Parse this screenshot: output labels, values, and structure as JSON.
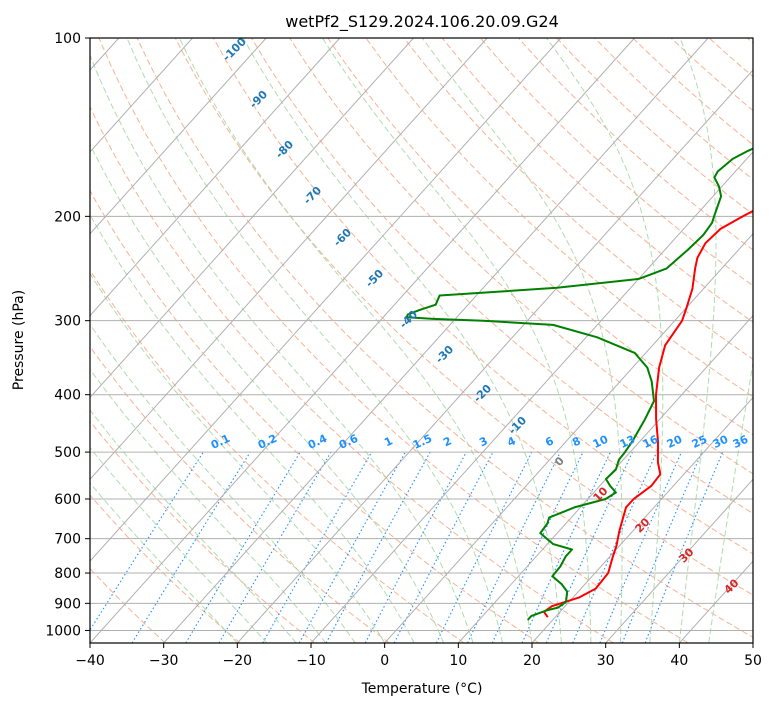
{
  "chart_data": {
    "type": "line",
    "subtype": "skew-t log-p",
    "title": "wetPf2_S129.2024.106.20.09.G24",
    "xlabel": "Temperature (°C)",
    "ylabel": "Pressure (hPa)",
    "xlim": [
      -40,
      50
    ],
    "ylim": [
      1050,
      100
    ],
    "y_scale": "log",
    "grid": true,
    "x_ticks": [
      -40,
      -30,
      -20,
      -10,
      0,
      10,
      20,
      30,
      40,
      50
    ],
    "y_ticks": [
      1000,
      900,
      800,
      700,
      600,
      500,
      400,
      300,
      200,
      100
    ],
    "colors": {
      "temperature": "#ff0000",
      "dewpoint": "#008000",
      "dry_adiabats": "#f4a582",
      "moist_adiabats": "#a6d8a6",
      "mixing_ratio": "#1e90ff",
      "isotherms": "#808080"
    },
    "series": [
      {
        "role": "temperature",
        "points": [
          [
            19.0,
            950
          ],
          [
            17.8,
            930
          ],
          [
            18.2,
            910
          ],
          [
            20.8,
            880
          ],
          [
            22.0,
            850
          ],
          [
            21.8,
            800
          ],
          [
            20.4,
            750
          ],
          [
            19.6,
            720
          ],
          [
            18.2,
            680
          ],
          [
            16.2,
            620
          ],
          [
            16.2,
            600
          ],
          [
            17.0,
            570
          ],
          [
            16.8,
            545
          ],
          [
            15.0,
            520
          ],
          [
            12.5,
            480
          ],
          [
            9.5,
            440
          ],
          [
            6.5,
            400
          ],
          [
            3.6,
            360
          ],
          [
            1.7,
            330
          ],
          [
            1.0,
            300
          ],
          [
            0.0,
            285
          ],
          [
            -1.5,
            265
          ],
          [
            -3.6,
            245
          ],
          [
            -4.6,
            235
          ],
          [
            -5.3,
            222
          ],
          [
            -5.0,
            210
          ],
          [
            -3.5,
            200
          ],
          [
            -1.7,
            190
          ],
          [
            0.4,
            180
          ],
          [
            1.6,
            170
          ],
          [
            2.4,
            160
          ],
          [
            2.4,
            150
          ],
          [
            2.6,
            140
          ],
          [
            3.2,
            132
          ],
          [
            5.0,
            125
          ],
          [
            8.0,
            120
          ],
          [
            9.5,
            115
          ],
          [
            11.6,
            110
          ],
          [
            12.8,
            105
          ],
          [
            13.4,
            100
          ]
        ]
      },
      {
        "role": "dewpoint",
        "points": [
          [
            16.6,
            960
          ],
          [
            16.6,
            945
          ],
          [
            18.0,
            925
          ],
          [
            19.2,
            915
          ],
          [
            19.6,
            895
          ],
          [
            18.5,
            860
          ],
          [
            16.8,
            835
          ],
          [
            14.6,
            810
          ],
          [
            14.5,
            780
          ],
          [
            14.0,
            750
          ],
          [
            14.0,
            730
          ],
          [
            10.8,
            715
          ],
          [
            7.7,
            685
          ],
          [
            7.5,
            660
          ],
          [
            7.0,
            645
          ],
          [
            9.2,
            620
          ],
          [
            12.4,
            600
          ],
          [
            13.0,
            585
          ],
          [
            11.4,
            570
          ],
          [
            10.0,
            555
          ],
          [
            10.2,
            535
          ],
          [
            9.4,
            515
          ],
          [
            9.3,
            500
          ],
          [
            9.0,
            480
          ],
          [
            8.0,
            440
          ],
          [
            7.0,
            410
          ],
          [
            4.3,
            380
          ],
          [
            2.0,
            360
          ],
          [
            -1.5,
            340
          ],
          [
            -8.5,
            320
          ],
          [
            -16,
            305
          ],
          [
            -26,
            300
          ],
          [
            -33,
            298
          ],
          [
            -36.8,
            296
          ],
          [
            -37,
            293
          ],
          [
            -36,
            288
          ],
          [
            -34.4,
            282
          ],
          [
            -35.0,
            272
          ],
          [
            -20,
            264
          ],
          [
            -10.0,
            255
          ],
          [
            -7.5,
            245
          ],
          [
            -6.9,
            228
          ],
          [
            -6.6,
            215
          ],
          [
            -6.9,
            205
          ],
          [
            -7.4,
            200
          ],
          [
            -8.9,
            185
          ],
          [
            -10.4,
            178
          ],
          [
            -12.1,
            172
          ],
          [
            -12.4,
            168
          ],
          [
            -11.9,
            160
          ],
          [
            -10.8,
            155
          ],
          [
            -9.3,
            150
          ],
          [
            -6.8,
            145
          ],
          [
            -4.3,
            140
          ],
          [
            -2.8,
            135
          ],
          [
            -1.6,
            130
          ],
          [
            -0.6,
            125
          ],
          [
            0,
            120
          ],
          [
            0.5,
            115
          ],
          [
            1.2,
            110
          ],
          [
            2.0,
            106
          ],
          [
            2.9,
            100
          ]
        ]
      }
    ],
    "dry_adiabat_labels": [
      "-100",
      "-90",
      "-80",
      "-70",
      "-60",
      "-50",
      "-40",
      "-30",
      "-20",
      "-10"
    ],
    "moist_adiabat_labels": [
      "0",
      "10",
      "20",
      "30",
      "40"
    ],
    "mixing_ratio_labels": [
      "0.1",
      "0.2",
      "0.4",
      "0.6",
      "1",
      "1.5",
      "2",
      "3",
      "4",
      "6",
      "8",
      "10",
      "13",
      "16",
      "20",
      "25",
      "30",
      "36"
    ],
    "mixing_ratio_values": [
      0.1,
      0.2,
      0.4,
      0.6,
      1,
      1.5,
      2,
      3,
      4,
      6,
      8,
      10,
      13,
      16,
      20,
      25,
      30,
      36
    ]
  }
}
